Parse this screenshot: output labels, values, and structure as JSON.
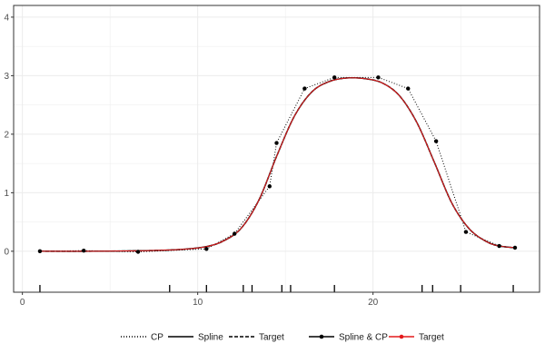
{
  "chart_data": {
    "type": "line",
    "xlim": [
      -0.5,
      29.5
    ],
    "ylim": [
      -0.7,
      4.2
    ],
    "x_ticks": [
      0,
      10,
      20
    ],
    "y_ticks": [
      0,
      1,
      2,
      3,
      4
    ],
    "grid": true,
    "legend_position": "bottom",
    "colors": {
      "target": "#e41a1c",
      "spline": "#000000",
      "cp": "#000000",
      "grid": "#ebebeb",
      "axis": "#333333"
    },
    "control_points": {
      "x": [
        1.0,
        3.5,
        6.6,
        10.5,
        12.1,
        14.1,
        14.5,
        16.1,
        17.8,
        20.3,
        22.0,
        23.6,
        25.3,
        27.2,
        28.1
      ],
      "y": [
        0.0,
        0.01,
        -0.01,
        0.04,
        0.3,
        1.11,
        1.85,
        2.78,
        2.97,
        2.97,
        2.78,
        1.88,
        0.33,
        0.09,
        0.06
      ]
    },
    "target_curve": {
      "x": [
        1.0,
        4.0,
        7.0,
        9.0,
        10.5,
        11.5,
        12.5,
        13.5,
        14.5,
        15.5,
        16.5,
        17.5,
        18.5,
        19.5,
        20.5,
        21.5,
        22.5,
        23.5,
        24.5,
        25.5,
        26.5,
        27.2,
        28.1
      ],
      "y": [
        0.0,
        0.0,
        0.01,
        0.03,
        0.08,
        0.18,
        0.4,
        0.88,
        1.62,
        2.3,
        2.72,
        2.9,
        2.96,
        2.95,
        2.88,
        2.66,
        2.2,
        1.52,
        0.82,
        0.38,
        0.16,
        0.09,
        0.06
      ]
    },
    "knots": [
      1.0,
      8.4,
      10.5,
      12.6,
      13.1,
      14.8,
      15.3,
      17.8,
      22.8,
      23.4,
      25.0,
      28.0
    ],
    "legend": [
      {
        "label": "CP",
        "style": "dotted",
        "color": "#000000"
      },
      {
        "label": "Spline",
        "style": "solid",
        "color": "#000000"
      },
      {
        "label": "Target",
        "style": "dashed",
        "color": "#000000"
      },
      {
        "label": "Spline & CP",
        "style": "point-line",
        "color": "#000000"
      },
      {
        "label": "Target",
        "style": "point-line",
        "color": "#e41a1c"
      }
    ]
  }
}
